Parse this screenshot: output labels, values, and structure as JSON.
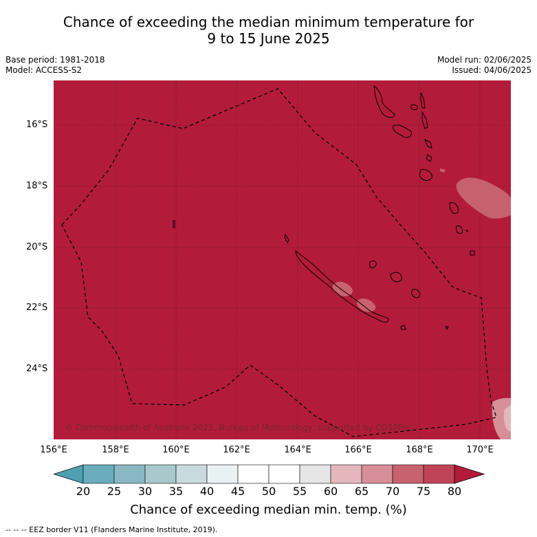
{
  "title": {
    "line1": "Chance of exceeding the median minimum temperature for",
    "line2": "9 to 15 June 2025"
  },
  "meta": {
    "base_period": "Base period: 1981-2018",
    "model": "Model: ACCESS-S2",
    "model_run": "Model run: 02/06/2025",
    "issued": "Issued: 04/06/2025"
  },
  "map": {
    "lat_labels": [
      "16°S",
      "18°S",
      "20°S",
      "22°S",
      "24°S"
    ],
    "lon_labels": [
      "156°E",
      "158°E",
      "160°E",
      "162°E",
      "164°E",
      "166°E",
      "168°E",
      "170°E"
    ],
    "copyright": "© Commonwealth of Australia 2025, Bureau of Meteorology, supported by COSPPac",
    "background_color": "#b21c3a",
    "background_category": "80+"
  },
  "colorbar": {
    "ticks": [
      "20",
      "25",
      "30",
      "35",
      "40",
      "45",
      "50",
      "55",
      "60",
      "65",
      "70",
      "75",
      "80"
    ],
    "colors": [
      "#4fa1b2",
      "#6aaebd",
      "#8ab8c3",
      "#a8c8cc",
      "#c8dade",
      "#eaf1f2",
      "#ffffff",
      "#ffffff",
      "#e6e6e6",
      "#e4b7bd",
      "#d68e98",
      "#c9626f",
      "#c04457",
      "#b21c3a"
    ],
    "title": "Chance of exceeding median min. temp. (%)"
  },
  "footnote": "--  --  -- EEZ border V11 (Flanders Marine Institute, 2019)."
}
